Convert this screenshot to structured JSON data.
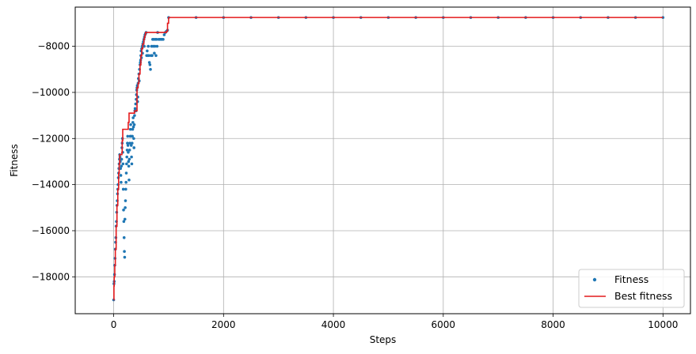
{
  "chart_data": {
    "type": "scatter",
    "title": "",
    "xlabel": "Steps",
    "ylabel": "Fitness",
    "xlim": [
      -700,
      10500
    ],
    "ylim": [
      -19600,
      -6300
    ],
    "xticks": [
      0,
      2000,
      4000,
      6000,
      8000,
      10000
    ],
    "yticks": [
      -18000,
      -16000,
      -14000,
      -12000,
      -10000,
      -8000
    ],
    "grid": true,
    "legend_position": "lower-right",
    "colors": {
      "fitness": "#1f77b4",
      "best": "#e41a1c"
    },
    "series": [
      {
        "name": "Fitness",
        "kind": "scatter",
        "points": [
          [
            0,
            -19000
          ],
          [
            5,
            -18300
          ],
          [
            10,
            -18200
          ],
          [
            15,
            -17900
          ],
          [
            20,
            -17500
          ],
          [
            25,
            -17200
          ],
          [
            30,
            -16800
          ],
          [
            35,
            -16500
          ],
          [
            40,
            -16300
          ],
          [
            45,
            -15800
          ],
          [
            50,
            -15600
          ],
          [
            55,
            -15200
          ],
          [
            60,
            -14900
          ],
          [
            65,
            -14700
          ],
          [
            70,
            -14400
          ],
          [
            75,
            -14200
          ],
          [
            80,
            -14000
          ],
          [
            85,
            -13700
          ],
          [
            90,
            -13500
          ],
          [
            95,
            -13300
          ],
          [
            100,
            -13100
          ],
          [
            105,
            -12900
          ],
          [
            110,
            -12700
          ],
          [
            115,
            -12800
          ],
          [
            120,
            -13000
          ],
          [
            125,
            -13300
          ],
          [
            130,
            -13600
          ],
          [
            135,
            -13900
          ],
          [
            140,
            -13200
          ],
          [
            145,
            -12900
          ],
          [
            150,
            -12400
          ],
          [
            155,
            -12200
          ],
          [
            160,
            -12000
          ],
          [
            165,
            -12600
          ],
          [
            170,
            -13100
          ],
          [
            175,
            -14200
          ],
          [
            180,
            -15100
          ],
          [
            185,
            -15600
          ],
          [
            190,
            -16300
          ],
          [
            195,
            -16900
          ],
          [
            200,
            -17150
          ],
          [
            205,
            -15500
          ],
          [
            210,
            -15000
          ],
          [
            215,
            -14700
          ],
          [
            220,
            -14200
          ],
          [
            225,
            -13900
          ],
          [
            230,
            -13500
          ],
          [
            235,
            -13100
          ],
          [
            240,
            -12800
          ],
          [
            245,
            -12500
          ],
          [
            250,
            -12200
          ],
          [
            255,
            -11900
          ],
          [
            260,
            -12300
          ],
          [
            265,
            -12600
          ],
          [
            270,
            -13000
          ],
          [
            275,
            -13200
          ],
          [
            280,
            -13800
          ],
          [
            285,
            -12900
          ],
          [
            290,
            -12500
          ],
          [
            295,
            -12200
          ],
          [
            300,
            -11900
          ],
          [
            305,
            -11600
          ],
          [
            310,
            -11400
          ],
          [
            315,
            -11900
          ],
          [
            320,
            -12300
          ],
          [
            325,
            -12800
          ],
          [
            330,
            -13100
          ],
          [
            335,
            -12200
          ],
          [
            340,
            -11900
          ],
          [
            345,
            -11600
          ],
          [
            350,
            -11300
          ],
          [
            355,
            -11100
          ],
          [
            360,
            -11500
          ],
          [
            365,
            -12000
          ],
          [
            370,
            -12400
          ],
          [
            375,
            -11400
          ],
          [
            380,
            -11000
          ],
          [
            385,
            -10800
          ],
          [
            390,
            -10700
          ],
          [
            400,
            -10500
          ],
          [
            405,
            -10800
          ],
          [
            410,
            -10300
          ],
          [
            415,
            -10100
          ],
          [
            420,
            -9900
          ],
          [
            425,
            -9800
          ],
          [
            430,
            -9700
          ],
          [
            435,
            -10400
          ],
          [
            440,
            -10200
          ],
          [
            445,
            -9600
          ],
          [
            450,
            -9400
          ],
          [
            460,
            -9200
          ],
          [
            465,
            -9500
          ],
          [
            470,
            -9000
          ],
          [
            480,
            -8800
          ],
          [
            485,
            -8700
          ],
          [
            490,
            -8600
          ],
          [
            495,
            -8400
          ],
          [
            500,
            -8200
          ],
          [
            505,
            -8500
          ],
          [
            510,
            -8100
          ],
          [
            520,
            -8000
          ],
          [
            525,
            -8300
          ],
          [
            530,
            -7900
          ],
          [
            540,
            -7800
          ],
          [
            550,
            -7700
          ],
          [
            555,
            -8000
          ],
          [
            560,
            -7600
          ],
          [
            570,
            -7500
          ],
          [
            580,
            -7450
          ],
          [
            590,
            -7400
          ],
          [
            600,
            -8400
          ],
          [
            610,
            -8200
          ],
          [
            620,
            -8400
          ],
          [
            630,
            -8000
          ],
          [
            640,
            -8400
          ],
          [
            650,
            -8700
          ],
          [
            660,
            -8800
          ],
          [
            670,
            -9000
          ],
          [
            680,
            -8400
          ],
          [
            690,
            -8000
          ],
          [
            700,
            -8400
          ],
          [
            710,
            -7700
          ],
          [
            720,
            -8000
          ],
          [
            730,
            -7700
          ],
          [
            740,
            -8300
          ],
          [
            750,
            -8000
          ],
          [
            760,
            -7700
          ],
          [
            770,
            -8400
          ],
          [
            780,
            -7700
          ],
          [
            790,
            -8000
          ],
          [
            800,
            -7400
          ],
          [
            820,
            -7700
          ],
          [
            840,
            -7700
          ],
          [
            860,
            -7700
          ],
          [
            880,
            -7700
          ],
          [
            900,
            -7700
          ],
          [
            920,
            -7500
          ],
          [
            940,
            -7400
          ],
          [
            960,
            -7350
          ],
          [
            980,
            -7300
          ],
          [
            1000,
            -6750
          ],
          [
            1500,
            -6750
          ],
          [
            2000,
            -6750
          ],
          [
            2500,
            -6750
          ],
          [
            3000,
            -6750
          ],
          [
            3500,
            -6750
          ],
          [
            4000,
            -6750
          ],
          [
            4500,
            -6750
          ],
          [
            5000,
            -6750
          ],
          [
            5500,
            -6750
          ],
          [
            6000,
            -6750
          ],
          [
            6500,
            -6750
          ],
          [
            7000,
            -6750
          ],
          [
            7500,
            -6750
          ],
          [
            8000,
            -6750
          ],
          [
            8500,
            -6750
          ],
          [
            9000,
            -6750
          ],
          [
            9500,
            -6750
          ],
          [
            10000,
            -6750
          ]
        ]
      },
      {
        "name": "Best fitness",
        "kind": "step",
        "points": [
          [
            0,
            -19000
          ],
          [
            5,
            -18400
          ],
          [
            10,
            -18000
          ],
          [
            20,
            -17500
          ],
          [
            30,
            -16800
          ],
          [
            45,
            -15800
          ],
          [
            60,
            -14900
          ],
          [
            75,
            -14200
          ],
          [
            90,
            -13500
          ],
          [
            100,
            -13100
          ],
          [
            110,
            -12700
          ],
          [
            150,
            -12600
          ],
          [
            155,
            -12100
          ],
          [
            165,
            -11600
          ],
          [
            260,
            -11600
          ],
          [
            265,
            -11300
          ],
          [
            280,
            -10900
          ],
          [
            370,
            -10900
          ],
          [
            380,
            -10800
          ],
          [
            420,
            -10800
          ],
          [
            425,
            -9800
          ],
          [
            445,
            -9600
          ],
          [
            460,
            -9200
          ],
          [
            480,
            -8800
          ],
          [
            495,
            -8400
          ],
          [
            510,
            -8100
          ],
          [
            530,
            -7900
          ],
          [
            550,
            -7700
          ],
          [
            560,
            -7600
          ],
          [
            570,
            -7500
          ],
          [
            580,
            -7400
          ],
          [
            800,
            -7400
          ],
          [
            960,
            -7350
          ],
          [
            980,
            -7000
          ],
          [
            1000,
            -6750
          ],
          [
            10000,
            -6750
          ]
        ]
      }
    ]
  }
}
